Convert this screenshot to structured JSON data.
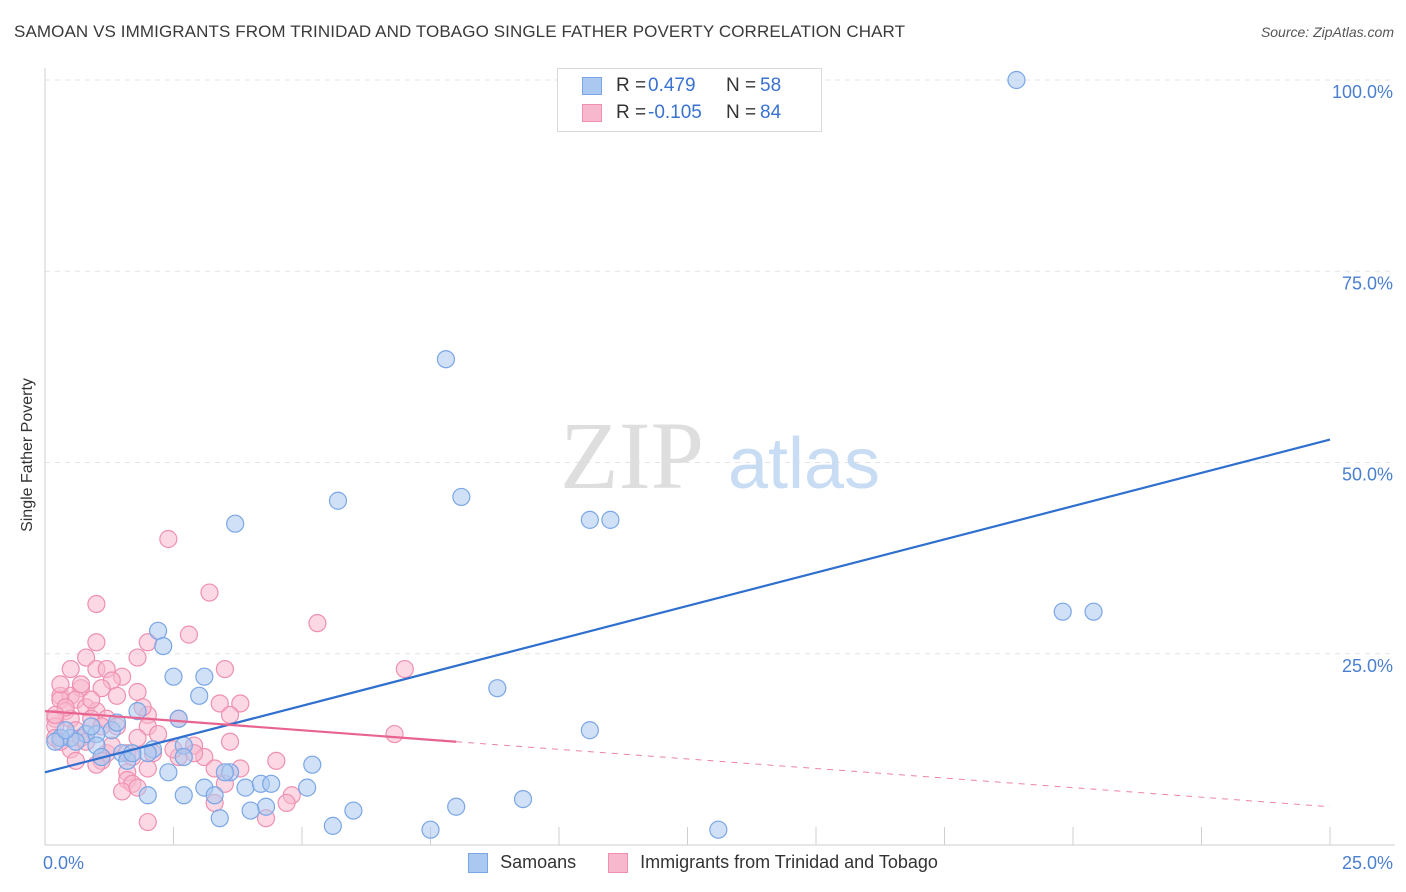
{
  "header": {
    "title": "SAMOAN VS IMMIGRANTS FROM TRINIDAD AND TOBAGO SINGLE FATHER POVERTY CORRELATION CHART",
    "source": "Source: ZipAtlas.com"
  },
  "watermark": {
    "zip": "ZIP",
    "atlas": "atlas"
  },
  "legend_top": {
    "rows": [
      {
        "r_label": "R =",
        "r_value": "0.479",
        "n_label": "N =",
        "n_value": "58"
      },
      {
        "r_label": "R =",
        "r_value": "-0.105",
        "n_label": "N =",
        "n_value": "84"
      }
    ]
  },
  "legend_bottom": {
    "items": [
      {
        "label": "Samoans"
      },
      {
        "label": "Immigrants from Trinidad and Tobago"
      }
    ]
  },
  "colors": {
    "samoan_fill": "#aac8f0",
    "samoan_stroke": "#7aa6e6",
    "samoan_line": "#2f6fce",
    "trinidad_fill": "#f7b8cd",
    "trinidad_stroke": "#ef90b0",
    "trinidad_line": "#e8648f",
    "tick_label": "#4a7fd0",
    "grid": "#e3e3e3"
  },
  "chart_data": {
    "type": "scatter",
    "title": "SAMOAN VS IMMIGRANTS FROM TRINIDAD AND TOBAGO SINGLE FATHER POVERTY CORRELATION CHART",
    "xlabel": "",
    "ylabel": "Single Father Poverty",
    "xlim": [
      0,
      25
    ],
    "ylim": [
      0,
      100
    ],
    "x_tick_labels": [
      "0.0%",
      "25.0%"
    ],
    "y_ticks": [
      25,
      50,
      75,
      100
    ],
    "y_tick_labels": [
      "25.0%",
      "50.0%",
      "75.0%",
      "100.0%"
    ],
    "series": [
      {
        "name": "Samoans",
        "R": 0.479,
        "N": 58,
        "trend": {
          "x": [
            0,
            25
          ],
          "y": [
            9.5,
            53
          ]
        },
        "points": [
          [
            18.9,
            100
          ],
          [
            7.8,
            63.5
          ],
          [
            5.7,
            45
          ],
          [
            8.1,
            45.5
          ],
          [
            3.7,
            42
          ],
          [
            10.6,
            42.5
          ],
          [
            11.0,
            42.5
          ],
          [
            19.8,
            30.5
          ],
          [
            20.4,
            30.5
          ],
          [
            2.2,
            28
          ],
          [
            2.3,
            26
          ],
          [
            3.1,
            22
          ],
          [
            2.5,
            22
          ],
          [
            3.0,
            19.5
          ],
          [
            8.8,
            20.5
          ],
          [
            10.6,
            15
          ],
          [
            1.8,
            17.5
          ],
          [
            1.3,
            15
          ],
          [
            0.5,
            14
          ],
          [
            0.8,
            14.5
          ],
          [
            1.0,
            14.5
          ],
          [
            0.3,
            14
          ],
          [
            0.6,
            13.5
          ],
          [
            1.0,
            13
          ],
          [
            1.5,
            12
          ],
          [
            2.7,
            13
          ],
          [
            1.1,
            11.5
          ],
          [
            1.6,
            11
          ],
          [
            2.1,
            12.5
          ],
          [
            2.7,
            11.5
          ],
          [
            5.2,
            10.5
          ],
          [
            0.2,
            13.5
          ],
          [
            3.6,
            9.5
          ],
          [
            2.4,
            9.5
          ],
          [
            3.1,
            7.5
          ],
          [
            3.9,
            7.5
          ],
          [
            4.2,
            8
          ],
          [
            4.4,
            8
          ],
          [
            5.1,
            7.5
          ],
          [
            2.0,
            6.5
          ],
          [
            2.7,
            6.5
          ],
          [
            3.3,
            6.5
          ],
          [
            4.3,
            5
          ],
          [
            4.0,
            4.5
          ],
          [
            3.4,
            3.5
          ],
          [
            6.0,
            4.5
          ],
          [
            5.6,
            2.5
          ],
          [
            7.5,
            2
          ],
          [
            8.0,
            5
          ],
          [
            9.3,
            6
          ],
          [
            13.1,
            2
          ],
          [
            3.5,
            9.5
          ],
          [
            2.0,
            12
          ],
          [
            1.7,
            12
          ],
          [
            0.9,
            15.5
          ],
          [
            0.4,
            15
          ],
          [
            1.4,
            16
          ],
          [
            2.6,
            16.5
          ]
        ]
      },
      {
        "name": "Immigrants from Trinidad and Tobago",
        "R": -0.105,
        "N": 84,
        "trend": {
          "x": [
            0,
            8
          ],
          "y": [
            17.5,
            13.5
          ]
        },
        "trend_dashed": {
          "x": [
            8,
            25
          ],
          "y": [
            13.5,
            5
          ]
        },
        "points": [
          [
            2.4,
            40
          ],
          [
            1.0,
            31.5
          ],
          [
            3.2,
            33
          ],
          [
            5.3,
            29
          ],
          [
            2.8,
            27.5
          ],
          [
            2.0,
            26.5
          ],
          [
            1.0,
            26.5
          ],
          [
            1.8,
            24.5
          ],
          [
            0.8,
            24.5
          ],
          [
            0.5,
            23
          ],
          [
            1.0,
            23
          ],
          [
            1.2,
            23
          ],
          [
            3.5,
            23
          ],
          [
            7.0,
            23
          ],
          [
            1.5,
            22
          ],
          [
            1.3,
            21.5
          ],
          [
            0.7,
            20.5
          ],
          [
            1.1,
            20.5
          ],
          [
            1.8,
            20
          ],
          [
            0.3,
            19.5
          ],
          [
            0.5,
            19.5
          ],
          [
            0.3,
            19
          ],
          [
            0.6,
            19
          ],
          [
            3.4,
            18.5
          ],
          [
            3.8,
            18.5
          ],
          [
            0.8,
            18
          ],
          [
            0.4,
            17.5
          ],
          [
            1.0,
            17.5
          ],
          [
            0.2,
            16.5
          ],
          [
            0.5,
            16.5
          ],
          [
            0.9,
            16.5
          ],
          [
            1.2,
            16.5
          ],
          [
            2.0,
            17
          ],
          [
            2.6,
            16.5
          ],
          [
            0.2,
            15.5
          ],
          [
            0.6,
            15
          ],
          [
            1.4,
            15.5
          ],
          [
            2.0,
            15.5
          ],
          [
            3.6,
            17
          ],
          [
            0.7,
            14
          ],
          [
            1.8,
            14
          ],
          [
            3.6,
            13.5
          ],
          [
            6.8,
            14.5
          ],
          [
            0.2,
            14
          ],
          [
            0.5,
            12.5
          ],
          [
            1.2,
            12
          ],
          [
            1.6,
            12
          ],
          [
            2.9,
            13
          ],
          [
            0.6,
            11
          ],
          [
            1.1,
            11
          ],
          [
            1.7,
            11.5
          ],
          [
            2.1,
            12
          ],
          [
            3.1,
            11.5
          ],
          [
            4.5,
            11
          ],
          [
            0.3,
            13.5
          ],
          [
            1.0,
            10.5
          ],
          [
            1.6,
            9.5
          ],
          [
            2.0,
            10
          ],
          [
            3.3,
            10
          ],
          [
            3.8,
            10
          ],
          [
            1.6,
            8.5
          ],
          [
            1.7,
            8
          ],
          [
            1.5,
            7
          ],
          [
            1.8,
            7.5
          ],
          [
            3.5,
            8
          ],
          [
            4.8,
            6.5
          ],
          [
            3.3,
            5.5
          ],
          [
            4.7,
            5.5
          ],
          [
            2.0,
            3
          ],
          [
            4.3,
            3.5
          ],
          [
            2.6,
            11.5
          ],
          [
            1.3,
            13
          ],
          [
            0.4,
            18
          ],
          [
            0.9,
            19
          ],
          [
            0.7,
            21
          ],
          [
            1.4,
            19.5
          ],
          [
            0.3,
            21
          ],
          [
            2.2,
            14.5
          ],
          [
            2.5,
            12.5
          ],
          [
            0.8,
            13.5
          ],
          [
            1.1,
            15.5
          ],
          [
            0.2,
            17
          ],
          [
            1.9,
            18
          ],
          [
            2.9,
            12
          ]
        ]
      }
    ]
  }
}
